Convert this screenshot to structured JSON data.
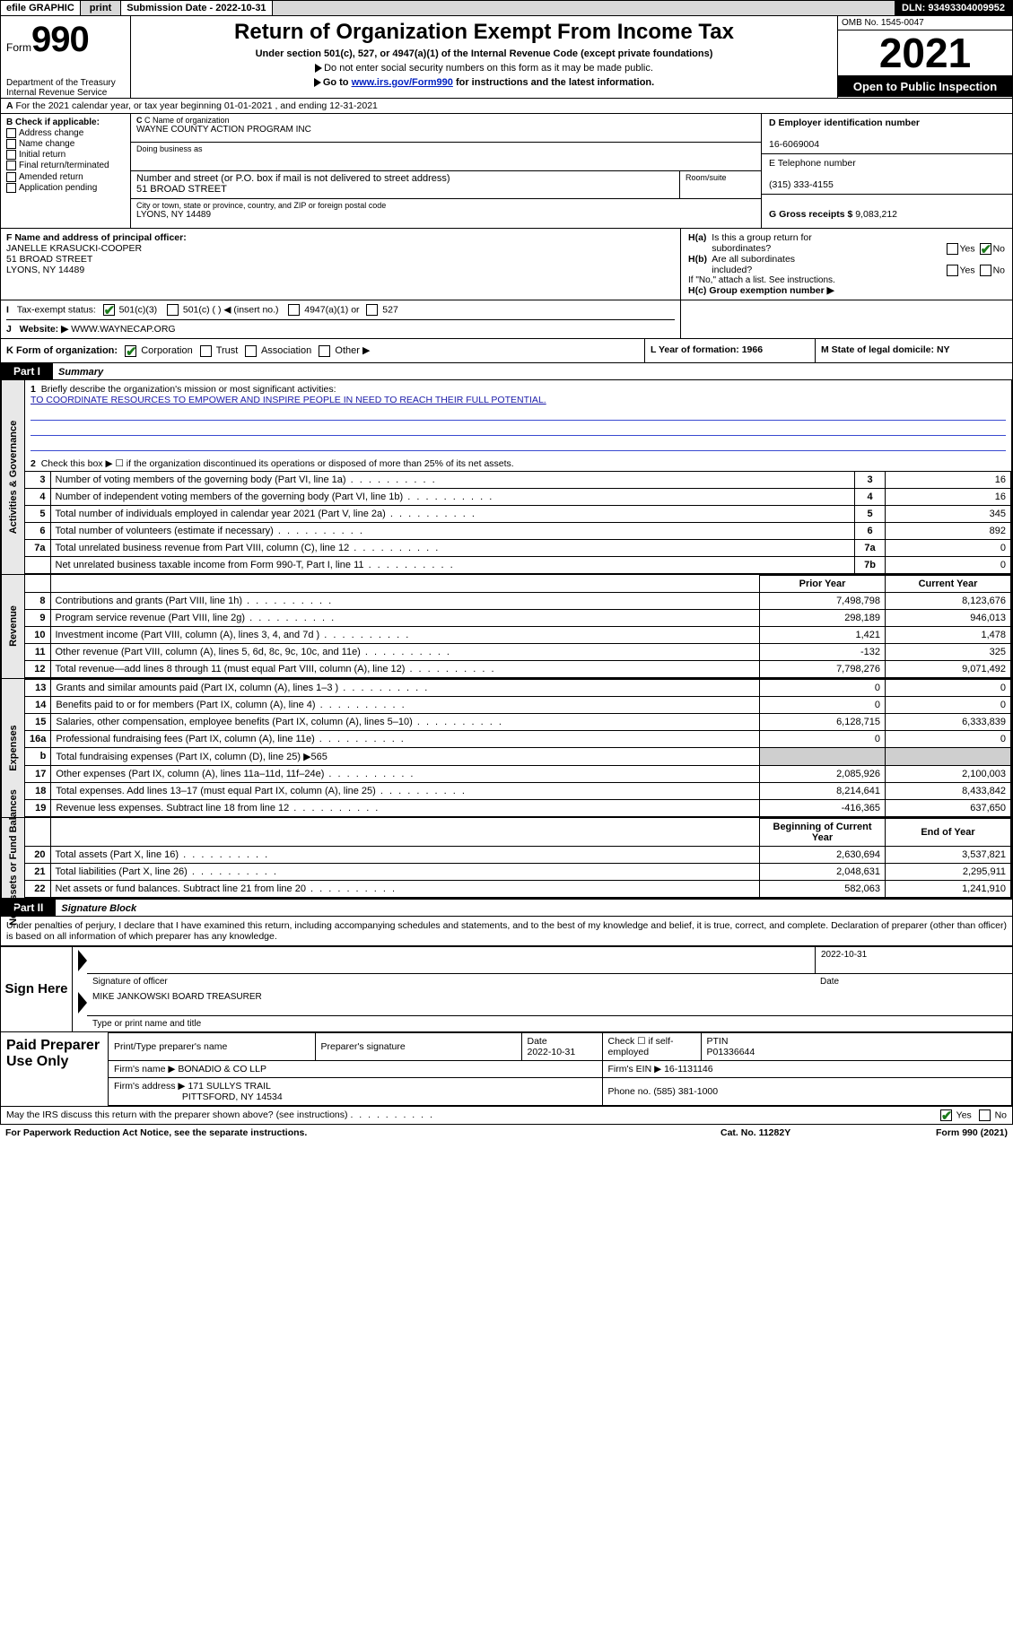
{
  "topbar": {
    "efile": "efile GRAPHIC",
    "print": "print",
    "sub_label": "Submission Date - ",
    "sub_date": "2022-10-31",
    "dln": "DLN: 93493304009952"
  },
  "header": {
    "form_word": "Form",
    "form_num": "990",
    "dept": "Department of the Treasury",
    "irs": "Internal Revenue Service",
    "title": "Return of Organization Exempt From Income Tax",
    "subtitle": "Under section 501(c), 527, or 4947(a)(1) of the Internal Revenue Code (except private foundations)",
    "note1": "Do not enter social security numbers on this form as it may be made public.",
    "note2_pre": "Go to ",
    "note2_link": "www.irs.gov/Form990",
    "note2_post": " for instructions and the latest information.",
    "omb": "OMB No. 1545-0047",
    "year": "2021",
    "open": "Open to Public Inspection"
  },
  "line_a": "For the 2021 calendar year, or tax year beginning 01-01-2021   , and ending 12-31-2021",
  "section_b": {
    "title": "B Check if applicable:",
    "opts": [
      "Address change",
      "Name change",
      "Initial return",
      "Final return/terminated",
      "Amended return",
      "Application pending"
    ]
  },
  "section_c": {
    "name_lbl": "C Name of organization",
    "name": "WAYNE COUNTY ACTION PROGRAM INC",
    "dba_lbl": "Doing business as",
    "addr_lbl": "Number and street (or P.O. box if mail is not delivered to street address)",
    "room_lbl": "Room/suite",
    "addr": "51 BROAD STREET",
    "city_lbl": "City or town, state or province, country, and ZIP or foreign postal code",
    "city": "LYONS, NY  14489"
  },
  "section_d": {
    "d_lbl": "D Employer identification number",
    "d_val": "16-6069004",
    "e_lbl": "E Telephone number",
    "e_val": "(315) 333-4155",
    "g_lbl": "G Gross receipts $ ",
    "g_val": "9,083,212"
  },
  "section_f": {
    "lbl": "F Name and address of principal officer:",
    "name": "JANELLE KRASUCKI-COOPER",
    "addr1": "51 BROAD STREET",
    "addr2": "LYONS, NY  14489"
  },
  "section_h": {
    "ha": "H(a)  Is this a group return for subordinates?",
    "hb": "H(b)  Are all subordinates included?",
    "hb_note": "If \"No,\" attach a list. See instructions.",
    "hc": "H(c)  Group exemption number ▶",
    "yes": "Yes",
    "no": "No"
  },
  "section_i": {
    "lbl": "Tax-exempt status:",
    "o1": "501(c)(3)",
    "o2": "501(c) (  ) ◀ (insert no.)",
    "o3": "4947(a)(1) or",
    "o4": "527"
  },
  "section_j": {
    "lbl": "Website: ▶",
    "val": "WWW.WAYNECAP.ORG"
  },
  "section_k": {
    "lbl": "K Form of organization:",
    "o1": "Corporation",
    "o2": "Trust",
    "o3": "Association",
    "o4": "Other ▶",
    "l": "L Year of formation: 1966",
    "m": "M State of legal domicile: NY"
  },
  "part1": {
    "hdr": "Part I",
    "title": "Summary",
    "q1": "Briefly describe the organization's mission or most significant activities:",
    "mission": "TO COORDINATE RESOURCES TO EMPOWER AND INSPIRE PEOPLE IN NEED TO REACH THEIR FULL POTENTIAL.",
    "q2": "Check this box ▶ ☐  if the organization discontinued its operations or disposed of more than 25% of its net assets.",
    "vlabels": {
      "gov": "Activities & Governance",
      "rev": "Revenue",
      "exp": "Expenses",
      "net": "Net Assets or Fund Balances"
    },
    "col_prior": "Prior Year",
    "col_curr": "Current Year",
    "col_begin": "Beginning of Current Year",
    "col_end": "End of Year",
    "rows_gov": [
      {
        "n": "3",
        "d": "Number of voting members of the governing body (Part VI, line 1a)",
        "k": "3",
        "v": "16"
      },
      {
        "n": "4",
        "d": "Number of independent voting members of the governing body (Part VI, line 1b)",
        "k": "4",
        "v": "16"
      },
      {
        "n": "5",
        "d": "Total number of individuals employed in calendar year 2021 (Part V, line 2a)",
        "k": "5",
        "v": "345"
      },
      {
        "n": "6",
        "d": "Total number of volunteers (estimate if necessary)",
        "k": "6",
        "v": "892"
      },
      {
        "n": "7a",
        "d": "Total unrelated business revenue from Part VIII, column (C), line 12",
        "k": "7a",
        "v": "0"
      },
      {
        "n": "",
        "d": "Net unrelated business taxable income from Form 990-T, Part I, line 11",
        "k": "7b",
        "v": "0"
      }
    ],
    "rows_rev": [
      {
        "n": "8",
        "d": "Contributions and grants (Part VIII, line 1h)",
        "p": "7,498,798",
        "c": "8,123,676"
      },
      {
        "n": "9",
        "d": "Program service revenue (Part VIII, line 2g)",
        "p": "298,189",
        "c": "946,013"
      },
      {
        "n": "10",
        "d": "Investment income (Part VIII, column (A), lines 3, 4, and 7d )",
        "p": "1,421",
        "c": "1,478"
      },
      {
        "n": "11",
        "d": "Other revenue (Part VIII, column (A), lines 5, 6d, 8c, 9c, 10c, and 11e)",
        "p": "-132",
        "c": "325"
      },
      {
        "n": "12",
        "d": "Total revenue—add lines 8 through 11 (must equal Part VIII, column (A), line 12)",
        "p": "7,798,276",
        "c": "9,071,492"
      }
    ],
    "rows_exp": [
      {
        "n": "13",
        "d": "Grants and similar amounts paid (Part IX, column (A), lines 1–3 )",
        "p": "0",
        "c": "0"
      },
      {
        "n": "14",
        "d": "Benefits paid to or for members (Part IX, column (A), line 4)",
        "p": "0",
        "c": "0"
      },
      {
        "n": "15",
        "d": "Salaries, other compensation, employee benefits (Part IX, column (A), lines 5–10)",
        "p": "6,128,715",
        "c": "6,333,839"
      },
      {
        "n": "16a",
        "d": "Professional fundraising fees (Part IX, column (A), line 11e)",
        "p": "0",
        "c": "0"
      },
      {
        "n": "b",
        "d": "Total fundraising expenses (Part IX, column (D), line 25) ▶565",
        "p": "",
        "c": "",
        "shade": true
      },
      {
        "n": "17",
        "d": "Other expenses (Part IX, column (A), lines 11a–11d, 11f–24e)",
        "p": "2,085,926",
        "c": "2,100,003"
      },
      {
        "n": "18",
        "d": "Total expenses. Add lines 13–17 (must equal Part IX, column (A), line 25)",
        "p": "8,214,641",
        "c": "8,433,842"
      },
      {
        "n": "19",
        "d": "Revenue less expenses. Subtract line 18 from line 12",
        "p": "-416,365",
        "c": "637,650"
      }
    ],
    "rows_net": [
      {
        "n": "20",
        "d": "Total assets (Part X, line 16)",
        "p": "2,630,694",
        "c": "3,537,821"
      },
      {
        "n": "21",
        "d": "Total liabilities (Part X, line 26)",
        "p": "2,048,631",
        "c": "2,295,911"
      },
      {
        "n": "22",
        "d": "Net assets or fund balances. Subtract line 21 from line 20",
        "p": "582,063",
        "c": "1,241,910"
      }
    ]
  },
  "part2": {
    "hdr": "Part II",
    "title": "Signature Block",
    "intro": "Under penalties of perjury, I declare that I have examined this return, including accompanying schedules and statements, and to the best of my knowledge and belief, it is true, correct, and complete. Declaration of preparer (other than officer) is based on all information of which preparer has any knowledge.",
    "sign_here": "Sign Here",
    "sig_of_officer": "Signature of officer",
    "date_lbl": "Date",
    "sig_date": "2022-10-31",
    "officer_name": "MIKE JANKOWSKI  BOARD TREASURER",
    "type_name": "Type or print name and title"
  },
  "prep": {
    "title": "Paid Preparer Use Only",
    "c1": "Print/Type preparer's name",
    "c2": "Preparer's signature",
    "c3": "Date",
    "c3v": "2022-10-31",
    "c4": "Check ☐ if self-employed",
    "c5": "PTIN",
    "c5v": "P01336644",
    "firm_name_lbl": "Firm's name    ▶",
    "firm_name": "BONADIO & CO LLP",
    "firm_ein_lbl": "Firm's EIN ▶",
    "firm_ein": "16-1131146",
    "firm_addr_lbl": "Firm's address ▶",
    "firm_addr1": "171 SULLYS TRAIL",
    "firm_addr2": "PITTSFORD, NY  14534",
    "phone_lbl": "Phone no.",
    "phone": "(585) 381-1000"
  },
  "footer": {
    "discuss": "May the IRS discuss this return with the preparer shown above? (see instructions)",
    "yes": "Yes",
    "no": "No",
    "paperwork": "For Paperwork Reduction Act Notice, see the separate instructions.",
    "cat": "Cat. No. 11282Y",
    "form": "Form 990 (2021)"
  }
}
